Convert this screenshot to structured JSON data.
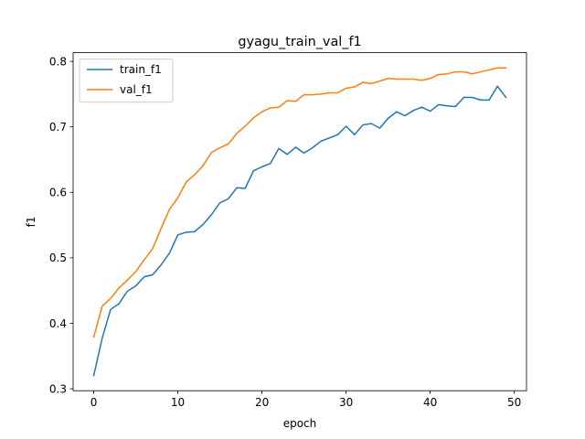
{
  "chart_data": {
    "type": "line",
    "title": "gyagu_train_val_f1",
    "xlabel": "epoch",
    "ylabel": "f1",
    "xlim": [
      -2.45,
      51.45
    ],
    "ylim": [
      0.297,
      0.8133
    ],
    "x_ticks": [
      0,
      10,
      20,
      30,
      40,
      50
    ],
    "y_ticks": [
      0.3,
      0.4,
      0.5,
      0.6,
      0.7,
      0.8
    ],
    "x_tick_labels": [
      "0",
      "10",
      "20",
      "30",
      "40",
      "50"
    ],
    "y_tick_labels": [
      "0.3",
      "0.4",
      "0.5",
      "0.6",
      "0.7",
      "0.8"
    ],
    "grid": false,
    "legend_position": "upper-left",
    "x": [
      0,
      1,
      2,
      3,
      4,
      5,
      6,
      7,
      8,
      9,
      10,
      11,
      12,
      13,
      14,
      15,
      16,
      17,
      18,
      19,
      20,
      21,
      22,
      23,
      24,
      25,
      26,
      27,
      28,
      29,
      30,
      31,
      32,
      33,
      34,
      35,
      36,
      37,
      38,
      39,
      40,
      41,
      42,
      43,
      44,
      45,
      46,
      47,
      48,
      49
    ],
    "series": [
      {
        "name": "train_f1",
        "color": "#1f77b4",
        "values": [
          0.32,
          0.377,
          0.421,
          0.43,
          0.449,
          0.457,
          0.471,
          0.474,
          0.489,
          0.507,
          0.535,
          0.539,
          0.54,
          0.551,
          0.566,
          0.584,
          0.59,
          0.607,
          0.606,
          0.633,
          0.639,
          0.644,
          0.667,
          0.658,
          0.669,
          0.66,
          0.668,
          0.678,
          0.683,
          0.688,
          0.701,
          0.688,
          0.703,
          0.705,
          0.698,
          0.713,
          0.723,
          0.717,
          0.725,
          0.73,
          0.724,
          0.734,
          0.732,
          0.731,
          0.745,
          0.745,
          0.741,
          0.741,
          0.762,
          0.745
        ]
      },
      {
        "name": "val_f1",
        "color": "#ff7f0e",
        "values": [
          0.379,
          0.426,
          0.438,
          0.454,
          0.466,
          0.479,
          0.497,
          0.514,
          0.545,
          0.574,
          0.592,
          0.616,
          0.627,
          0.641,
          0.661,
          0.668,
          0.674,
          0.69,
          0.701,
          0.714,
          0.723,
          0.729,
          0.73,
          0.74,
          0.739,
          0.749,
          0.749,
          0.75,
          0.752,
          0.752,
          0.759,
          0.761,
          0.768,
          0.766,
          0.77,
          0.774,
          0.773,
          0.773,
          0.773,
          0.771,
          0.774,
          0.78,
          0.781,
          0.784,
          0.784,
          0.781,
          0.784,
          0.787,
          0.79,
          0.79
        ]
      }
    ]
  }
}
